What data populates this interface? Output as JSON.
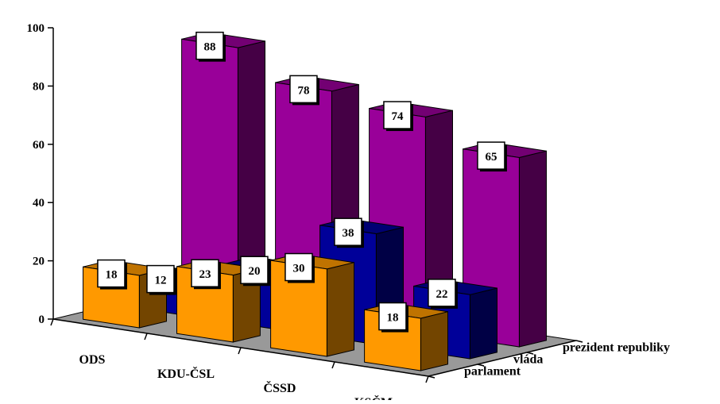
{
  "chart_data": {
    "type": "bar",
    "categories": [
      "ODS",
      "KDU-ČSL",
      "ČSSD",
      "KSČM"
    ],
    "series": [
      {
        "name": "prezident republiky",
        "values": [
          88,
          78,
          74,
          65
        ]
      },
      {
        "name": "vláda",
        "values": [
          12,
          20,
          38,
          22
        ]
      },
      {
        "name": "parlament",
        "values": [
          18,
          23,
          30,
          18
        ]
      }
    ],
    "ylim": [
      0,
      100
    ],
    "yticks": [
      0,
      20,
      40,
      60,
      80,
      100
    ],
    "colors": {
      "prezident republiky": "#990099",
      "vláda": "#000099",
      "parlament": "#FF9900",
      "floor": "#999999"
    }
  }
}
